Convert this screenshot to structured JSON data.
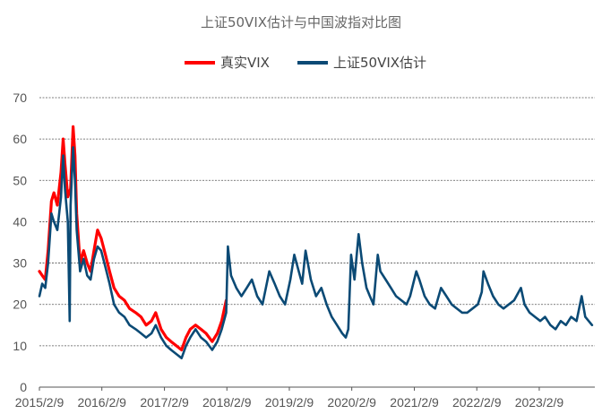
{
  "chart_data": {
    "type": "line",
    "title": "上证50VIX估计与中国波指对比图",
    "xlabel": "",
    "ylabel": "",
    "ylim": [
      0,
      70
    ],
    "yticks": [
      0,
      10,
      20,
      30,
      40,
      50,
      60,
      70
    ],
    "grid": true,
    "legend_position": "top",
    "xticks": [
      {
        "date": "2015-02-09",
        "label": "2015/2/9"
      },
      {
        "date": "2016-02-09",
        "label": "2016/2/9"
      },
      {
        "date": "2017-02-09",
        "label": "2017/2/9"
      },
      {
        "date": "2018-02-09",
        "label": "2018/2/9"
      },
      {
        "date": "2019-02-09",
        "label": "2019/2/9"
      },
      {
        "date": "2020-02-09",
        "label": "2020/2/9"
      },
      {
        "date": "2021-02-09",
        "label": "2021/2/9"
      },
      {
        "date": "2022-02-09",
        "label": "2022/2/9"
      },
      {
        "date": "2023-02-09",
        "label": "2023/2/9"
      }
    ],
    "xlim": [
      "2015-02-09",
      "2023-12-31"
    ],
    "series": [
      {
        "name": "真实VIX",
        "color": "#ff0000",
        "points": [
          [
            "2015-02-09",
            28
          ],
          [
            "2015-02-25",
            27
          ],
          [
            "2015-03-15",
            26
          ],
          [
            "2015-04-01",
            33
          ],
          [
            "2015-04-20",
            45
          ],
          [
            "2015-05-05",
            47
          ],
          [
            "2015-05-25",
            44
          ],
          [
            "2015-06-15",
            52
          ],
          [
            "2015-06-28",
            60
          ],
          [
            "2015-07-08",
            54
          ],
          [
            "2015-07-25",
            46
          ],
          [
            "2015-08-10",
            48
          ],
          [
            "2015-08-25",
            63
          ],
          [
            "2015-09-05",
            56
          ],
          [
            "2015-09-15",
            42
          ],
          [
            "2015-10-05",
            30
          ],
          [
            "2015-10-25",
            33
          ],
          [
            "2015-11-15",
            30
          ],
          [
            "2015-12-05",
            28
          ],
          [
            "2015-12-25",
            33
          ],
          [
            "2016-01-15",
            38
          ],
          [
            "2016-02-05",
            36
          ],
          [
            "2016-03-01",
            32
          ],
          [
            "2016-03-25",
            28
          ],
          [
            "2016-04-20",
            24
          ],
          [
            "2016-05-20",
            22
          ],
          [
            "2016-06-20",
            21
          ],
          [
            "2016-07-20",
            19
          ],
          [
            "2016-08-25",
            18
          ],
          [
            "2016-09-25",
            17
          ],
          [
            "2016-10-25",
            15
          ],
          [
            "2016-11-25",
            16
          ],
          [
            "2016-12-20",
            18
          ],
          [
            "2017-01-20",
            14
          ],
          [
            "2017-02-20",
            12
          ],
          [
            "2017-03-20",
            11
          ],
          [
            "2017-04-20",
            10
          ],
          [
            "2017-05-20",
            9
          ],
          [
            "2017-06-15",
            12
          ],
          [
            "2017-07-10",
            14
          ],
          [
            "2017-08-10",
            15
          ],
          [
            "2017-09-10",
            14
          ],
          [
            "2017-10-10",
            13
          ],
          [
            "2017-11-15",
            11
          ],
          [
            "2017-12-15",
            13
          ],
          [
            "2018-01-10",
            16
          ],
          [
            "2018-02-05",
            21
          ]
        ]
      },
      {
        "name": "上证50VIX估计",
        "color": "#0b4a75",
        "points": [
          [
            "2015-02-09",
            22
          ],
          [
            "2015-02-25",
            25
          ],
          [
            "2015-03-15",
            24
          ],
          [
            "2015-04-01",
            30
          ],
          [
            "2015-04-20",
            42
          ],
          [
            "2015-05-05",
            40
          ],
          [
            "2015-05-25",
            38
          ],
          [
            "2015-06-15",
            46
          ],
          [
            "2015-06-28",
            56
          ],
          [
            "2015-07-08",
            48
          ],
          [
            "2015-07-25",
            40
          ],
          [
            "2015-08-05",
            16
          ],
          [
            "2015-08-10",
            44
          ],
          [
            "2015-08-25",
            58
          ],
          [
            "2015-09-05",
            50
          ],
          [
            "2015-09-15",
            38
          ],
          [
            "2015-10-05",
            28
          ],
          [
            "2015-10-25",
            31
          ],
          [
            "2015-11-15",
            27
          ],
          [
            "2015-12-05",
            26
          ],
          [
            "2015-12-25",
            31
          ],
          [
            "2016-01-15",
            34
          ],
          [
            "2016-02-05",
            33
          ],
          [
            "2016-03-01",
            29
          ],
          [
            "2016-03-25",
            25
          ],
          [
            "2016-04-20",
            20
          ],
          [
            "2016-05-20",
            18
          ],
          [
            "2016-06-20",
            17
          ],
          [
            "2016-07-20",
            15
          ],
          [
            "2016-08-25",
            14
          ],
          [
            "2016-09-25",
            13
          ],
          [
            "2016-10-25",
            12
          ],
          [
            "2016-11-25",
            13
          ],
          [
            "2016-12-20",
            15
          ],
          [
            "2017-01-20",
            12
          ],
          [
            "2017-02-20",
            10
          ],
          [
            "2017-03-20",
            9
          ],
          [
            "2017-04-20",
            8
          ],
          [
            "2017-05-20",
            7
          ],
          [
            "2017-06-15",
            10
          ],
          [
            "2017-07-10",
            12
          ],
          [
            "2017-08-10",
            14
          ],
          [
            "2017-09-10",
            12
          ],
          [
            "2017-10-10",
            11
          ],
          [
            "2017-11-15",
            9
          ],
          [
            "2017-12-15",
            11
          ],
          [
            "2018-01-10",
            14
          ],
          [
            "2018-02-05",
            18
          ],
          [
            "2018-02-15",
            34
          ],
          [
            "2018-03-05",
            27
          ],
          [
            "2018-04-05",
            24
          ],
          [
            "2018-05-05",
            22
          ],
          [
            "2018-06-05",
            24
          ],
          [
            "2018-07-05",
            26
          ],
          [
            "2018-08-05",
            22
          ],
          [
            "2018-09-05",
            20
          ],
          [
            "2018-10-15",
            28
          ],
          [
            "2018-11-15",
            25
          ],
          [
            "2018-12-15",
            22
          ],
          [
            "2019-01-15",
            20
          ],
          [
            "2019-02-15",
            26
          ],
          [
            "2019-03-10",
            32
          ],
          [
            "2019-04-05",
            28
          ],
          [
            "2019-04-25",
            25
          ],
          [
            "2019-05-15",
            33
          ],
          [
            "2019-06-15",
            26
          ],
          [
            "2019-07-15",
            22
          ],
          [
            "2019-08-15",
            24
          ],
          [
            "2019-09-15",
            20
          ],
          [
            "2019-10-15",
            17
          ],
          [
            "2019-11-15",
            15
          ],
          [
            "2019-12-15",
            13
          ],
          [
            "2020-01-05",
            12
          ],
          [
            "2020-01-20",
            14
          ],
          [
            "2020-02-05",
            32
          ],
          [
            "2020-02-25",
            26
          ],
          [
            "2020-03-20",
            37
          ],
          [
            "2020-04-10",
            30
          ],
          [
            "2020-05-05",
            24
          ],
          [
            "2020-05-25",
            22
          ],
          [
            "2020-06-15",
            20
          ],
          [
            "2020-07-10",
            32
          ],
          [
            "2020-07-25",
            28
          ],
          [
            "2020-08-25",
            26
          ],
          [
            "2020-09-25",
            24
          ],
          [
            "2020-10-25",
            22
          ],
          [
            "2020-11-25",
            21
          ],
          [
            "2020-12-25",
            20
          ],
          [
            "2021-01-15",
            22
          ],
          [
            "2021-02-20",
            28
          ],
          [
            "2021-03-10",
            26
          ],
          [
            "2021-04-10",
            22
          ],
          [
            "2021-05-10",
            20
          ],
          [
            "2021-06-10",
            19
          ],
          [
            "2021-07-15",
            24
          ],
          [
            "2021-08-15",
            22
          ],
          [
            "2021-09-15",
            20
          ],
          [
            "2021-10-15",
            19
          ],
          [
            "2021-11-15",
            18
          ],
          [
            "2021-12-15",
            18
          ],
          [
            "2022-01-15",
            19
          ],
          [
            "2022-02-15",
            20
          ],
          [
            "2022-03-10",
            23
          ],
          [
            "2022-03-20",
            28
          ],
          [
            "2022-04-15",
            25
          ],
          [
            "2022-05-15",
            22
          ],
          [
            "2022-06-15",
            20
          ],
          [
            "2022-07-15",
            19
          ],
          [
            "2022-08-15",
            20
          ],
          [
            "2022-09-15",
            21
          ],
          [
            "2022-10-25",
            24
          ],
          [
            "2022-11-15",
            20
          ],
          [
            "2022-12-15",
            18
          ],
          [
            "2023-01-15",
            17
          ],
          [
            "2023-02-15",
            16
          ],
          [
            "2023-03-15",
            17
          ],
          [
            "2023-04-15",
            15
          ],
          [
            "2023-05-15",
            14
          ],
          [
            "2023-06-15",
            16
          ],
          [
            "2023-07-15",
            15
          ],
          [
            "2023-08-15",
            17
          ],
          [
            "2023-09-15",
            16
          ],
          [
            "2023-10-15",
            22
          ],
          [
            "2023-11-05",
            17
          ],
          [
            "2023-11-25",
            16
          ],
          [
            "2023-12-15",
            15
          ]
        ]
      }
    ]
  }
}
